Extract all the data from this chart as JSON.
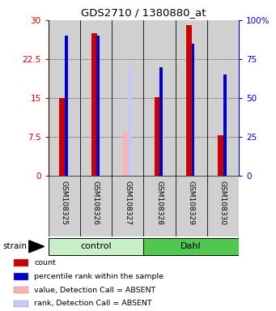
{
  "title": "GDS2710 / 1380880_at",
  "samples": [
    "GSM108325",
    "GSM108326",
    "GSM108327",
    "GSM108328",
    "GSM108329",
    "GSM108330"
  ],
  "groups": [
    {
      "name": "control",
      "color_light": "#c8f0c8",
      "color_dark": "#50c850",
      "start": 0,
      "end": 2
    },
    {
      "name": "Dahl",
      "color_light": "#50c850",
      "color_dark": "#50c850",
      "start": 3,
      "end": 5
    }
  ],
  "ylim_left": [
    0,
    30
  ],
  "ylim_right": [
    0,
    100
  ],
  "yticks_left": [
    0,
    7.5,
    15,
    22.5,
    30
  ],
  "yticks_right": [
    0,
    25,
    50,
    75,
    100
  ],
  "ytick_labels_left": [
    "0",
    "7.5",
    "15",
    "22.5",
    "30"
  ],
  "ytick_labels_right": [
    "0",
    "25",
    "50",
    "75",
    "100%"
  ],
  "left_axis_color": "#cc0000",
  "right_axis_color": "#0000cc",
  "bar_data": [
    {
      "sample": "GSM108325",
      "count": 15.0,
      "rank": 27.0,
      "absent": false
    },
    {
      "sample": "GSM108326",
      "count": 27.5,
      "rank": 27.0,
      "absent": false
    },
    {
      "sample": "GSM108327",
      "count": 0.0,
      "rank": 0.0,
      "absent": true,
      "absent_count": 8.5,
      "absent_rank": 21.0
    },
    {
      "sample": "GSM108328",
      "count": 15.2,
      "rank": 21.0,
      "absent": false
    },
    {
      "sample": "GSM108329",
      "count": 29.0,
      "rank": 25.5,
      "absent": false
    },
    {
      "sample": "GSM108330",
      "count": 7.8,
      "rank": 19.5,
      "absent": false
    }
  ],
  "count_color": "#cc0000",
  "rank_color": "#0000cc",
  "absent_count_color": "#ffb0b0",
  "absent_rank_color": "#c0c8ff",
  "background_gray": "#d0d0d0",
  "group_color_control": "#c8f0c8",
  "group_color_dahl": "#50c850",
  "legend_items": [
    {
      "color": "#cc0000",
      "label": "count"
    },
    {
      "color": "#0000cc",
      "label": "percentile rank within the sample"
    },
    {
      "color": "#ffb0b0",
      "label": "value, Detection Call = ABSENT"
    },
    {
      "color": "#c8c8ff",
      "label": "rank, Detection Call = ABSENT"
    }
  ]
}
